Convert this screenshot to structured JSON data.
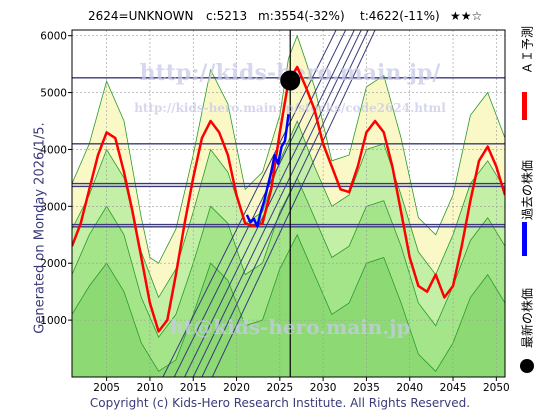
{
  "header": {
    "code_name": "2624=UNKNOWN",
    "current": "c:5213",
    "minimum": "m:3554(-32%)",
    "target": "t:4622(-11%)",
    "rating": "★★☆"
  },
  "side_note": "Generated on Monday 2026/1/5.",
  "watermarks": {
    "site": "http://kids-hero.main.jp/",
    "page": "http://kids-hero.main.jp/stocks/code2624.html",
    "bottom": "ht@kids-hero.main.jp"
  },
  "footer": "Copyright (c) Kids-Hero Research Institute. All Rights Reserved.",
  "legend": [
    {
      "label": "ＡＩ予測",
      "color": "#ff0000"
    },
    {
      "label": "過去の株価",
      "color": "#0000ff"
    },
    {
      "label": "最新の株価",
      "color": "#000000"
    }
  ],
  "colors": {
    "forecast": "#ff0000",
    "history": "#0000ff",
    "current_marker": "#000000",
    "grid_lines": "#3a3a7a",
    "band_fill": "#b8eea0",
    "band_line": "#2a9a2a",
    "upper_fill": "#fbf8c8",
    "projection_lines": "#3a3a7a",
    "title_watermark": "#c8c8e8"
  },
  "chart_data": {
    "type": "line",
    "xlim": [
      2001,
      2051
    ],
    "ylim": [
      0,
      6100
    ],
    "x_ticks": [
      2005,
      2010,
      2015,
      2020,
      2025,
      2030,
      2035,
      2040,
      2045,
      2050
    ],
    "y_ticks": [
      1000,
      2000,
      3000,
      4000,
      5000,
      6000
    ],
    "grid": true,
    "reference_levels": [
      5260,
      4100,
      3400,
      3350,
      2680,
      2640
    ],
    "current_point": {
      "x": 2026.2,
      "y": 5213
    },
    "forecast": {
      "x": [
        2001,
        2002,
        2003,
        2004,
        2005,
        2006,
        2007,
        2008,
        2009,
        2010,
        2011,
        2012,
        2013,
        2014,
        2015,
        2016,
        2017,
        2018,
        2019,
        2020,
        2021,
        2022,
        2023,
        2024,
        2025,
        2026,
        2027,
        2028,
        2029,
        2030,
        2031,
        2032,
        2033,
        2034,
        2035,
        2036,
        2037,
        2038,
        2039,
        2040,
        2041,
        2042,
        2043,
        2044,
        2045,
        2046,
        2047,
        2048,
        2049,
        2050,
        2051
      ],
      "y": [
        2300,
        2700,
        3300,
        3900,
        4300,
        4200,
        3600,
        2900,
        2100,
        1300,
        800,
        1000,
        1800,
        2700,
        3500,
        4200,
        4500,
        4300,
        3900,
        3200,
        2700,
        2650,
        2700,
        3300,
        4300,
        5200,
        5450,
        5100,
        4700,
        4100,
        3700,
        3300,
        3250,
        3700,
        4300,
        4500,
        4300,
        3700,
        2900,
        2100,
        1600,
        1500,
        1800,
        1400,
        1600,
        2300,
        3100,
        3800,
        4050,
        3700,
        3200
      ]
    },
    "history": {
      "x": [
        2021.2,
        2021.6,
        2022.0,
        2022.4,
        2022.8,
        2023.2,
        2023.6,
        2024.0,
        2024.4,
        2024.8,
        2025.2,
        2025.6,
        2026.0
      ],
      "y": [
        2850,
        2720,
        2780,
        2650,
        2900,
        3100,
        3350,
        3600,
        3900,
        3750,
        4050,
        4150,
        4620
      ]
    },
    "bands": [
      {
        "x": [
          2001,
          2003,
          2005,
          2007,
          2009,
          2010,
          2011,
          2013,
          2015,
          2017,
          2019,
          2021,
          2023,
          2025,
          2026,
          2027,
          2029,
          2031,
          2033,
          2035,
          2037,
          2039,
          2041,
          2043,
          2045,
          2047,
          2049,
          2051
        ],
        "y": [
          3400,
          4100,
          5200,
          4500,
          2800,
          2100,
          2000,
          2600,
          3900,
          5400,
          4800,
          3300,
          3600,
          4600,
          5600,
          6000,
          5100,
          3800,
          3900,
          5100,
          5300,
          4200,
          2800,
          2500,
          3200,
          4600,
          5000,
          4200
        ]
      },
      {
        "x": [
          2001,
          2003,
          2005,
          2007,
          2009,
          2011,
          2013,
          2015,
          2017,
          2019,
          2021,
          2023,
          2025,
          2027,
          2029,
          2031,
          2033,
          2035,
          2037,
          2039,
          2041,
          2043,
          2045,
          2047,
          2049,
          2051
        ],
        "y": [
          2600,
          3200,
          4000,
          3500,
          2200,
          1400,
          1900,
          2900,
          4000,
          3600,
          2700,
          2900,
          3800,
          4500,
          3700,
          3000,
          3200,
          4000,
          4100,
          3200,
          2200,
          1800,
          2500,
          3400,
          3800,
          3300
        ]
      },
      {
        "x": [
          2001,
          2003,
          2005,
          2007,
          2009,
          2011,
          2013,
          2015,
          2017,
          2019,
          2021,
          2023,
          2025,
          2027,
          2029,
          2031,
          2033,
          2035,
          2037,
          2039,
          2041,
          2043,
          2045,
          2047,
          2049,
          2051
        ],
        "y": [
          1800,
          2500,
          3000,
          2500,
          1400,
          700,
          1100,
          2000,
          3000,
          2700,
          1800,
          2000,
          2900,
          3500,
          2800,
          2100,
          2300,
          3000,
          3100,
          2300,
          1300,
          900,
          1600,
          2400,
          2800,
          2300
        ]
      },
      {
        "x": [
          2001,
          2003,
          2005,
          2007,
          2009,
          2011,
          2013,
          2015,
          2017,
          2019,
          2021,
          2023,
          2025,
          2027,
          2029,
          2031,
          2033,
          2035,
          2037,
          2039,
          2041,
          2043,
          2045,
          2047,
          2049,
          2051
        ],
        "y": [
          1100,
          1600,
          2000,
          1500,
          600,
          100,
          300,
          1100,
          2000,
          1700,
          900,
          1000,
          1900,
          2500,
          1800,
          1100,
          1300,
          2000,
          2100,
          1300,
          400,
          100,
          600,
          1400,
          1800,
          1300
        ]
      }
    ],
    "projection_lines": [
      {
        "x": [
          2011.5,
          2031.5
        ],
        "y": [
          0,
          6100
        ]
      },
      {
        "x": [
          2012.8,
          2032.6
        ],
        "y": [
          0,
          6100
        ]
      },
      {
        "x": [
          2014.0,
          2033.6
        ],
        "y": [
          0,
          6100
        ]
      },
      {
        "x": [
          2015.0,
          2034.4
        ],
        "y": [
          0,
          6100
        ]
      },
      {
        "x": [
          2016.0,
          2035.2
        ],
        "y": [
          0,
          6100
        ]
      },
      {
        "x": [
          2017.2,
          2036.0
        ],
        "y": [
          0,
          6100
        ]
      }
    ]
  }
}
